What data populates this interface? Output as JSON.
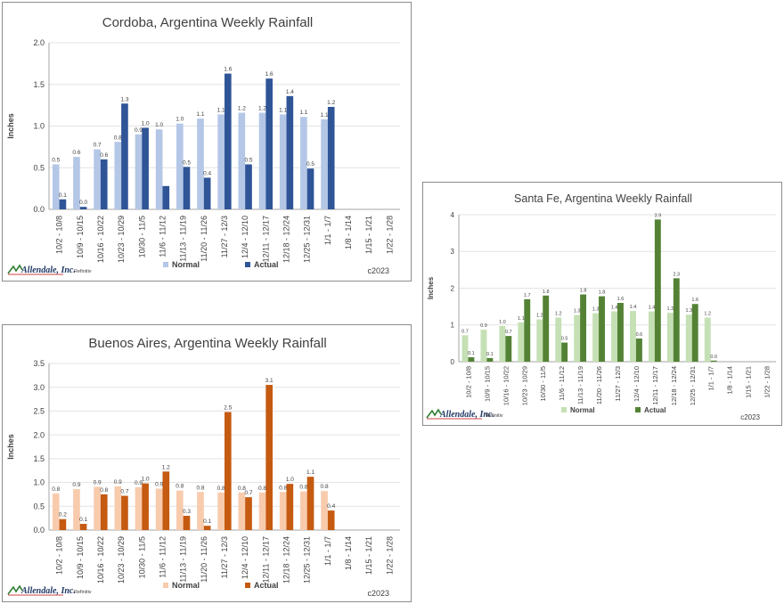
{
  "charts": [
    {
      "id": "cordoba",
      "title": "Cordoba, Argentina Weekly Rainfall",
      "ylabel": "Inches",
      "ylim": [
        0,
        2.0
      ],
      "yticks": [
        "0.0",
        "0.5",
        "1.0",
        "1.5",
        "2.0"
      ],
      "ytick_values": [
        0,
        0.5,
        1.0,
        1.5,
        2.0
      ],
      "legend": {
        "normal": "Normal",
        "actual": "Actual"
      },
      "colors": {
        "normal": "#b4c7e7",
        "actual": "#2f5597"
      },
      "source": "Refinitiv",
      "copyright": "c2023",
      "logo": "Allendale, Inc."
    },
    {
      "id": "santafe",
      "title": "Santa Fe, Argentina Weekly Rainfall",
      "ylabel": "Inches",
      "ylim": [
        0,
        4
      ],
      "yticks": [
        "0",
        "1",
        "2",
        "3",
        "4"
      ],
      "ytick_values": [
        0,
        1,
        2,
        3,
        4
      ],
      "legend": {
        "normal": "Normal",
        "actual": "Actual"
      },
      "colors": {
        "normal": "#c5e0b4",
        "actual": "#548235"
      },
      "source": "Refinitiv",
      "copyright": "c2023",
      "logo": "Allendale, Inc."
    },
    {
      "id": "ba",
      "title": "Buenos Aires, Argentina Weekly Rainfall",
      "ylabel": "Inches",
      "ylim": [
        0,
        3.5
      ],
      "yticks": [
        "0.0",
        "0.5",
        "1.0",
        "1.5",
        "2.0",
        "2.5",
        "3.0",
        "3.5"
      ],
      "ytick_values": [
        0,
        0.5,
        1.0,
        1.5,
        2.0,
        2.5,
        3.0,
        3.5
      ],
      "legend": {
        "normal": "Normal",
        "actual": "Actual"
      },
      "colors": {
        "normal": "#f8cbad",
        "actual": "#c55a11"
      },
      "source": "Refinitiv",
      "copyright": "c2023",
      "logo": "Allendale, Inc."
    }
  ],
  "chart_data": [
    {
      "type": "bar",
      "title": "Cordoba, Argentina Weekly Rainfall",
      "ylabel": "Inches",
      "ylim": [
        0,
        2.0
      ],
      "legend_position": "bottom",
      "categories": [
        "10/2 - 10/8",
        "10/9 - 10/15",
        "10/16 - 10/22",
        "10/23 - 10/29",
        "10/30 - 11/5",
        "11/6 - 11/12",
        "11/13 - 11/19",
        "11/20 - 11/26",
        "11/27 - 12/3",
        "12/4 - 12/10",
        "12/11 - 12/17",
        "12/18 - 12/24",
        "12/25 - 12/31",
        "1/1 - 1/7",
        "1/8 - 1/14",
        "1/15 - 1/21",
        "1/22 - 1/28"
      ],
      "series": [
        {
          "name": "Normal",
          "values": [
            0.54,
            0.63,
            0.72,
            0.81,
            0.9,
            0.96,
            1.03,
            1.09,
            1.14,
            1.16,
            1.16,
            1.14,
            1.11,
            1.08,
            null,
            null,
            null
          ],
          "labels": [
            "0.5",
            "0.6",
            "0.7",
            "0.8",
            "0.9",
            "1.0",
            "1.0",
            "1.1",
            "1.1",
            "1.2",
            "1.2",
            "1.1",
            "1.1",
            "1.1",
            "",
            "",
            ""
          ]
        },
        {
          "name": "Actual",
          "values": [
            0.12,
            0.03,
            0.6,
            1.27,
            0.98,
            0.28,
            0.51,
            0.38,
            1.63,
            0.54,
            1.57,
            1.36,
            0.49,
            1.23,
            null,
            null,
            null
          ],
          "labels": [
            "0.1",
            "0.0",
            "0.6",
            "1.3",
            "1.0",
            "",
            "0.5",
            "0.4",
            "1.6",
            "0.5",
            "1.6",
            "1.4",
            "0.5",
            "1.2",
            "",
            "",
            ""
          ]
        }
      ]
    },
    {
      "type": "bar",
      "title": "Santa Fe, Argentina Weekly Rainfall",
      "ylabel": "Inches",
      "ylim": [
        0,
        4
      ],
      "legend_position": "bottom",
      "categories": [
        "10/2 - 10/8",
        "10/9 - 10/15",
        "10/16 - 10/22",
        "10/23 - 10/29",
        "10/30 - 11/5",
        "11/6 - 11/12",
        "11/13 - 11/19",
        "11/20 - 11/26",
        "11/27 - 12/3",
        "12/4 - 12/10",
        "12/11 - 12/17",
        "12/18 - 12/24",
        "12/25 - 12/31",
        "1/1 - 1/7",
        "1/8 - 1/14",
        "1/15 - 1/21",
        "1/22 - 1/28"
      ],
      "series": [
        {
          "name": "Normal",
          "values": [
            0.72,
            0.87,
            0.97,
            1.07,
            1.15,
            1.2,
            1.27,
            1.32,
            1.37,
            1.38,
            1.37,
            1.33,
            1.28,
            1.2,
            null,
            null,
            null
          ],
          "labels": [
            "0.7",
            "0.9",
            "1.0",
            "1.1",
            "1.2",
            "1.2",
            "1.3",
            "1.3",
            "1.4",
            "1.4",
            "1.4",
            "1.3",
            "1.3",
            "1.2",
            "",
            "",
            ""
          ]
        },
        {
          "name": "Actual",
          "values": [
            0.12,
            0.1,
            0.7,
            1.7,
            1.8,
            0.52,
            1.83,
            1.78,
            1.6,
            0.63,
            3.87,
            2.27,
            1.57,
            0.03,
            null,
            null,
            null
          ],
          "labels": [
            "0.1",
            "0.1",
            "0.7",
            "1.7",
            "1.8",
            "0.5",
            "1.8",
            "1.8",
            "1.6",
            "0.6",
            "3.9",
            "2.3",
            "1.6",
            "0.0",
            "",
            "",
            ""
          ]
        }
      ]
    },
    {
      "type": "bar",
      "title": "Buenos Aires, Argentina Weekly Rainfall",
      "ylabel": "Inches",
      "ylim": [
        0,
        3.5
      ],
      "legend_position": "bottom",
      "categories": [
        "10/2 - 10/8",
        "10/9 - 10/15",
        "10/16 - 10/22",
        "10/23 - 10/29",
        "10/30 - 11/5",
        "11/6 - 11/12",
        "11/13 - 11/19",
        "11/20 - 11/26",
        "11/27 - 12/3",
        "12/4 - 12/10",
        "12/11 - 12/17",
        "12/18 - 12/24",
        "12/25 - 12/31",
        "1/1 - 1/7",
        "1/8 - 1/14",
        "1/15 - 1/21",
        "1/22 - 1/28"
      ],
      "series": [
        {
          "name": "Normal",
          "values": [
            0.77,
            0.86,
            0.91,
            0.92,
            0.9,
            0.87,
            0.83,
            0.8,
            0.79,
            0.79,
            0.79,
            0.8,
            0.81,
            0.82,
            null,
            null,
            null
          ],
          "labels": [
            "0.8",
            "0.9",
            "0.9",
            "0.9",
            "0.9",
            "0.9",
            "0.8",
            "0.8",
            "0.8",
            "0.8",
            "0.8",
            "0.8",
            "0.8",
            "0.8",
            "",
            "",
            ""
          ]
        },
        {
          "name": "Actual",
          "values": [
            0.23,
            0.13,
            0.75,
            0.72,
            0.98,
            1.23,
            0.3,
            0.09,
            2.48,
            0.69,
            3.05,
            0.97,
            1.12,
            0.41,
            null,
            null,
            null
          ],
          "labels": [
            "0.2",
            "0.1",
            "0.8",
            "0.7",
            "1.0",
            "1.2",
            "0.3",
            "0.1",
            "2.5",
            "0.7",
            "3.1",
            "1.0",
            "1.1",
            "0.4",
            "",
            "",
            ""
          ]
        }
      ]
    }
  ]
}
